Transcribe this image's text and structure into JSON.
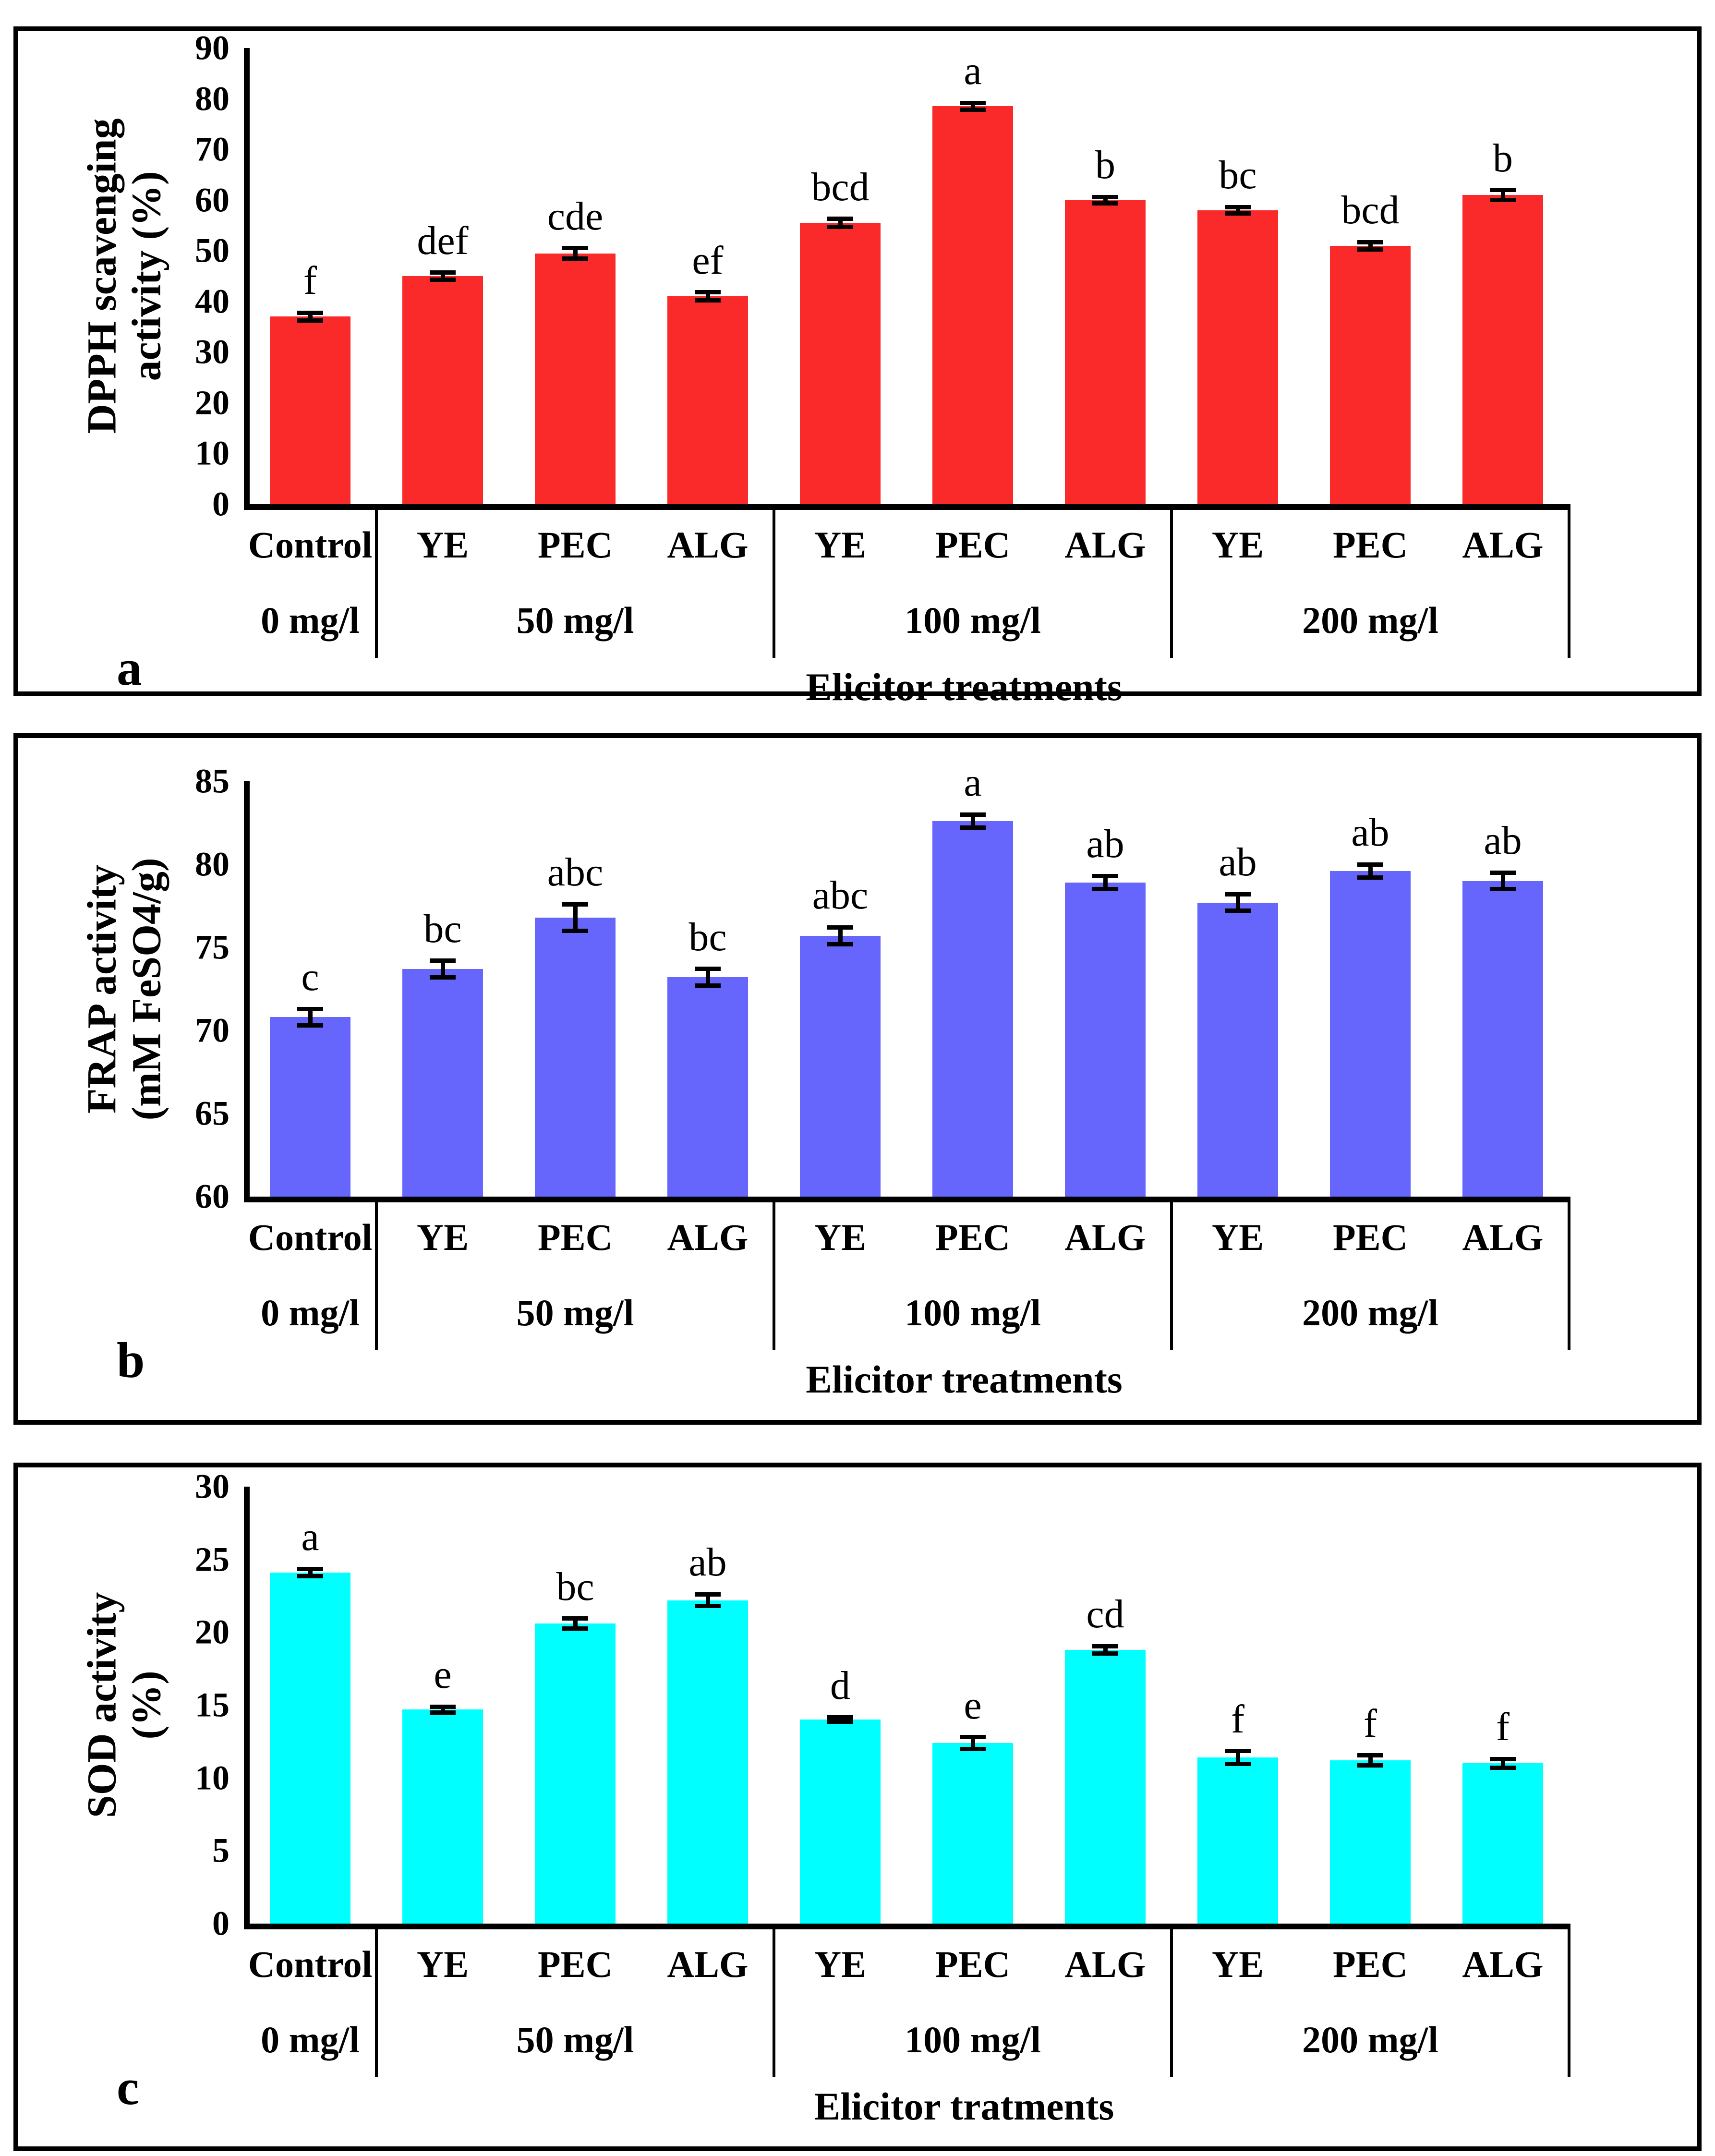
{
  "chart_data": [
    {
      "type": "bar",
      "panel_letter": "a",
      "ylabel_line1": "DPPH scavenging",
      "ylabel_line2": "activity (%)",
      "xlabel": "Elicitor treatments",
      "bar_color": "#fa2a2a",
      "ylim": [
        0,
        90
      ],
      "ytick_step": 10,
      "yticks": [
        0,
        10,
        20,
        30,
        40,
        50,
        60,
        70,
        80,
        90
      ],
      "grid": false,
      "legend": "none",
      "categories": [
        "Control",
        "YE",
        "PEC",
        "ALG",
        "YE",
        "PEC",
        "ALG",
        "YE",
        "PEC",
        "ALG"
      ],
      "group_labels": [
        "0 mg/l",
        "50 mg/l",
        "100 mg/l",
        "200 mg/l"
      ],
      "group_sizes": [
        1,
        3,
        3,
        3
      ],
      "values": [
        37,
        45,
        49.5,
        41,
        55.5,
        78.5,
        60,
        58,
        51,
        61
      ],
      "errors": [
        0.8,
        0.7,
        1.0,
        0.8,
        0.8,
        0.7,
        0.6,
        0.6,
        0.7,
        1.0
      ],
      "sig_letters": [
        "f",
        "def",
        "cde",
        "ef",
        "bcd",
        "a",
        "b",
        "bc",
        "bcd",
        "b"
      ]
    },
    {
      "type": "bar",
      "panel_letter": "b",
      "ylabel_line1": "FRAP activity",
      "ylabel_line2": "(mM FeSO4/g)",
      "xlabel": "Elicitor treatments",
      "bar_color": "#6666fc",
      "ylim": [
        60,
        85
      ],
      "ytick_step": 5,
      "yticks": [
        60,
        65,
        70,
        75,
        80,
        85
      ],
      "grid": false,
      "legend": "none",
      "categories": [
        "Control",
        "YE",
        "PEC",
        "ALG",
        "YE",
        "PEC",
        "ALG",
        "YE",
        "PEC",
        "ALG"
      ],
      "group_labels": [
        "0 mg/l",
        "50 mg/l",
        "100 mg/l",
        "200 mg/l"
      ],
      "group_sizes": [
        1,
        3,
        3,
        3
      ],
      "values": [
        70.8,
        73.7,
        76.8,
        73.2,
        75.7,
        82.6,
        78.9,
        77.7,
        79.6,
        79.0
      ],
      "errors": [
        0.5,
        0.5,
        0.8,
        0.5,
        0.5,
        0.4,
        0.4,
        0.5,
        0.4,
        0.5
      ],
      "sig_letters": [
        "c",
        "bc",
        "abc",
        "bc",
        "abc",
        "a",
        "ab",
        "ab",
        "ab",
        "ab"
      ]
    },
    {
      "type": "bar",
      "panel_letter": "c",
      "ylabel_line1": "SOD activity",
      "ylabel_line2": "(%)",
      "xlabel": "Elicitor tratments",
      "bar_color": "#00ffff",
      "ylim": [
        0,
        30
      ],
      "ytick_step": 5,
      "yticks": [
        0,
        5,
        10,
        15,
        20,
        25,
        30
      ],
      "grid": false,
      "legend": "none",
      "categories": [
        "Control",
        "YE",
        "PEC",
        "ALG",
        "YE",
        "PEC",
        "ALG",
        "YE",
        "PEC",
        "ALG"
      ],
      "group_labels": [
        "0 mg/l",
        "50 mg/l",
        "100 mg/l",
        "200 mg/l"
      ],
      "group_sizes": [
        1,
        3,
        3,
        3
      ],
      "values": [
        24.1,
        14.7,
        20.6,
        22.2,
        14.0,
        12.4,
        18.8,
        11.4,
        11.2,
        11.0
      ],
      "errors": [
        0.25,
        0.2,
        0.35,
        0.4,
        0.15,
        0.4,
        0.25,
        0.45,
        0.35,
        0.3
      ],
      "sig_letters": [
        "a",
        "e",
        "bc",
        "ab",
        "d",
        "e",
        "cd",
        "f",
        "f",
        "f"
      ]
    }
  ]
}
